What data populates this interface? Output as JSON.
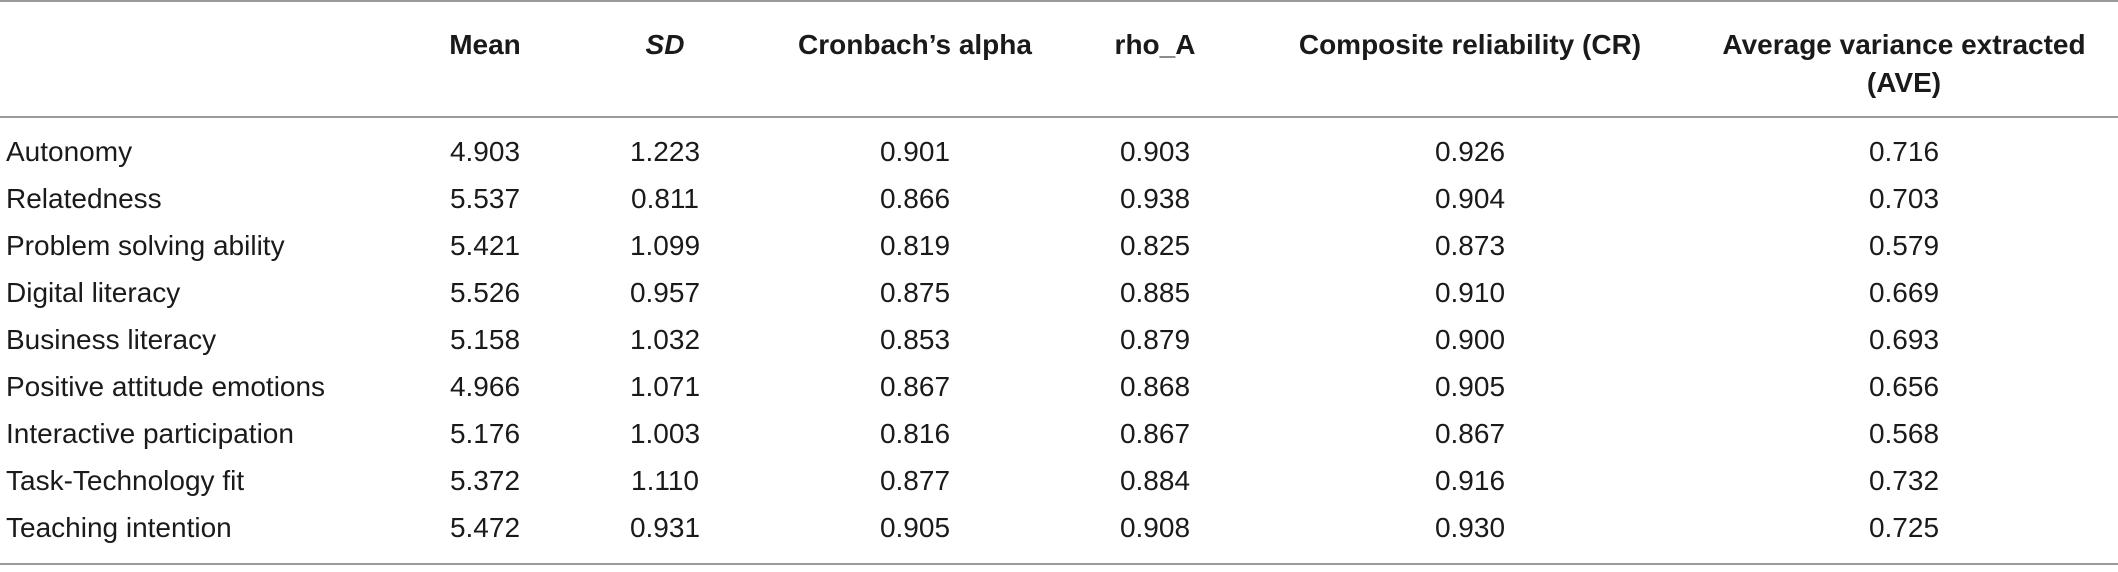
{
  "table": {
    "columns": [
      "",
      "Mean",
      "SD",
      "Cronbach’s alpha",
      "rho_A",
      "Composite reliability (CR)",
      "Average variance extracted (AVE)"
    ],
    "rows": [
      {
        "label": "Autonomy",
        "cells": [
          "4.903",
          "1.223",
          "0.901",
          "0.903",
          "0.926",
          "0.716"
        ]
      },
      {
        "label": "Relatedness",
        "cells": [
          "5.537",
          "0.811",
          "0.866",
          "0.938",
          "0.904",
          "0.703"
        ]
      },
      {
        "label": "Problem solving ability",
        "cells": [
          "5.421",
          "1.099",
          "0.819",
          "0.825",
          "0.873",
          "0.579"
        ]
      },
      {
        "label": "Digital literacy",
        "cells": [
          "5.526",
          "0.957",
          "0.875",
          "0.885",
          "0.910",
          "0.669"
        ]
      },
      {
        "label": "Business literacy",
        "cells": [
          "5.158",
          "1.032",
          "0.853",
          "0.879",
          "0.900",
          "0.693"
        ]
      },
      {
        "label": "Positive attitude emotions",
        "cells": [
          "4.966",
          "1.071",
          "0.867",
          "0.868",
          "0.905",
          "0.656"
        ]
      },
      {
        "label": "Interactive participation",
        "cells": [
          "5.176",
          "1.003",
          "0.816",
          "0.867",
          "0.867",
          "0.568"
        ]
      },
      {
        "label": "Task-Technology fit",
        "cells": [
          "5.372",
          "1.110",
          "0.877",
          "0.884",
          "0.916",
          "0.732"
        ]
      },
      {
        "label": "Teaching intention",
        "cells": [
          "5.472",
          "0.931",
          "0.905",
          "0.908",
          "0.930",
          "0.725"
        ]
      }
    ]
  },
  "colors": {
    "rule": "#9a9a9a",
    "text": "#1a1a1a"
  }
}
